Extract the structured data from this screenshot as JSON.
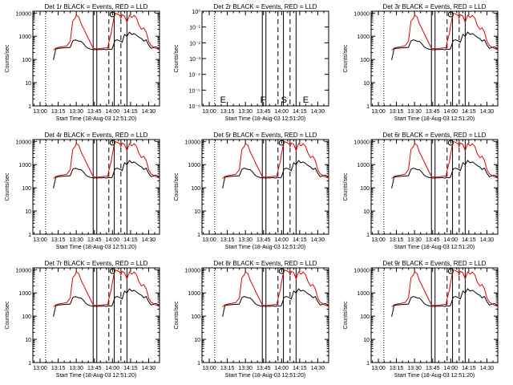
{
  "figure": {
    "x_time_labels": [
      "13:00",
      "13:15",
      "13:30",
      "13:45",
      "14:00",
      "14:15",
      "14:30"
    ],
    "x_axis_label": "Start Time (18-Aug-03 12:51:20)",
    "y_axis_label": "Counts/sec",
    "y_tick_labels_counts": [
      "1",
      "10",
      "100",
      "1000",
      "10000"
    ],
    "y_tick_labels_small": [
      "10⁻⁶",
      "10⁻⁵",
      "10⁻⁴",
      "10⁻³",
      "10⁻²",
      "10⁻¹",
      "10⁰"
    ],
    "series_colors": {
      "events": "#000000",
      "lld": "#e00000"
    }
  },
  "chart_data": [
    {
      "type": "line",
      "title": "Det 1r BLACK = Events, RED = LLD",
      "empty": false,
      "ylim": [
        1,
        12000
      ],
      "log_y": true
    },
    {
      "type": "line",
      "title": "Det 2r BLACK = Events, RED = LLD",
      "empty": true,
      "ylim": [
        1e-06,
        1
      ],
      "log_y": true,
      "flags": [
        {
          "text": "E",
          "x": 11.5
        },
        {
          "text": "F",
          "x": 44.5
        },
        {
          "text": "S",
          "x": 62
        },
        {
          "text": "E",
          "x": 80
        }
      ]
    },
    {
      "type": "line",
      "title": "Det 3r BLACK = Events, RED = LLD",
      "empty": false,
      "ylim": [
        1,
        12000
      ],
      "log_y": true
    },
    {
      "type": "line",
      "title": "Det 4r BLACK = Events, RED = LLD",
      "empty": false,
      "ylim": [
        1,
        12000
      ],
      "log_y": true
    },
    {
      "type": "line",
      "title": "Det 5r BLACK = Events, RED = LLD",
      "empty": false,
      "ylim": [
        1,
        12000
      ],
      "log_y": true
    },
    {
      "type": "line",
      "title": "Det 6r BLACK = Events, RED = LLD",
      "empty": false,
      "ylim": [
        1,
        12000
      ],
      "log_y": true
    },
    {
      "type": "line",
      "title": "Det 7r BLACK = Events, RED = LLD",
      "empty": false,
      "ylim": [
        1,
        12000
      ],
      "log_y": true
    },
    {
      "type": "line",
      "title": "Det 8r BLACK = Events, RED = LLD",
      "empty": false,
      "ylim": [
        1,
        12000
      ],
      "log_y": true
    },
    {
      "type": "line",
      "title": "Det 9r BLACK = Events, RED = LLD",
      "empty": false,
      "ylim": [
        1,
        12000
      ],
      "log_y": true
    }
  ],
  "shared_series": {
    "x_minutes": [
      0,
      5,
      10,
      11,
      13,
      15,
      18,
      22,
      25,
      27,
      29,
      30,
      32,
      34,
      36,
      38,
      40,
      42,
      44,
      46,
      47,
      49,
      51,
      53,
      55,
      56,
      57,
      59,
      60,
      62,
      64,
      66,
      67,
      68,
      70,
      72,
      74,
      76,
      78,
      80,
      82,
      84,
      86,
      88,
      90,
      92,
      96,
      99
    ],
    "events": [
      null,
      null,
      null,
      95,
      280,
      300,
      310,
      320,
      330,
      620,
      700,
      680,
      620,
      600,
      480,
      350,
      300,
      280,
      270,
      265,
      265,
      270,
      270,
      275,
      260,
      270,
      280,
      270,
      300,
      650,
      700,
      640,
      600,
      550,
      1200,
      1000,
      1500,
      1200,
      1300,
      1100,
      900,
      800,
      620,
      700,
      420,
      300,
      350,
      300
    ],
    "lld": [
      null,
      null,
      null,
      250,
      310,
      330,
      350,
      380,
      600,
      4500,
      6000,
      8000,
      7000,
      3500,
      2200,
      1300,
      800,
      500,
      300,
      290,
      290,
      295,
      300,
      310,
      320,
      300,
      560,
      1400,
      3000,
      10000,
      9000,
      8000,
      6000,
      8500,
      7500,
      4000,
      8000,
      6500,
      8000,
      6000,
      3000,
      2000,
      2300,
      1500,
      600,
      400,
      300,
      260
    ]
  },
  "markers": {
    "solid_x_minutes": [
      44,
      47,
      61.5,
      72
    ],
    "dashed_x_minutes": [
      57,
      67
    ],
    "dotted_x_minutes": [
      4.5
    ]
  },
  "x_range_minutes": [
    -6,
    99
  ]
}
